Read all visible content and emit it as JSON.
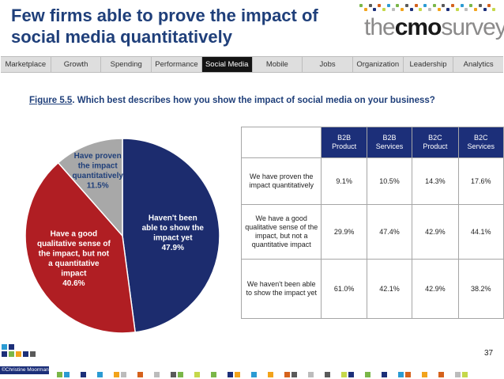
{
  "title": "Few firms able to prove the impact of social media quantitatively",
  "logo": {
    "pre": "the",
    "bold": "cmo",
    "post": "survey"
  },
  "nav": {
    "tabs": [
      "Marketplace",
      "Growth",
      "Spending",
      "Performance",
      "Social Media",
      "Mobile",
      "Jobs",
      "Organization",
      "Leadership",
      "Analytics"
    ],
    "active": "Social Media"
  },
  "figure": {
    "number": "Figure 5.5",
    "question": ". Which best describes how you show the impact of social media on your business?"
  },
  "chart_data": {
    "type": "pie",
    "title": "Which best describes how you show the impact of social media on your business?",
    "slices": [
      {
        "label": [
          "Haven't been",
          "able to show the",
          "impact yet"
        ],
        "value": 47.9,
        "value_label": "47.9%",
        "color": "#1c2c6e",
        "text_color": "#ffffff"
      },
      {
        "label": [
          "Have a good",
          "qualitative sense of",
          "the impact, but not",
          "a quantitative",
          "impact"
        ],
        "value": 40.6,
        "value_label": "40.6%",
        "color": "#b01e23",
        "text_color": "#ffffff"
      },
      {
        "label": [
          "Have proven",
          "the impact",
          "quantitatively"
        ],
        "value": 11.5,
        "value_label": "11.5%",
        "color": "#a8a8a8",
        "text_color": "#1f3f7a"
      }
    ]
  },
  "table": {
    "headers": [
      [
        "B2B",
        "Product"
      ],
      [
        "B2B",
        "Services"
      ],
      [
        "B2C",
        "Product"
      ],
      [
        "B2C",
        "Services"
      ]
    ],
    "rows": [
      {
        "label": "We have proven the impact quantitatively",
        "values": [
          "9.1%",
          "10.5%",
          "14.3%",
          "17.6%"
        ]
      },
      {
        "label": "We have a good qualitative sense of the impact, but not a quantitative impact",
        "values": [
          "29.9%",
          "47.4%",
          "42.9%",
          "44.1%"
        ]
      },
      {
        "label": "We haven't been able to show the impact yet",
        "values": [
          "61.0%",
          "42.1%",
          "42.9%",
          "38.2%"
        ]
      }
    ]
  },
  "footer": {
    "credit": "©Christine Moorman",
    "page_number": "37"
  },
  "colors": {
    "title": "#1f3f7a",
    "header_bg": "#1c2f79",
    "accent_palette": [
      "#7ab648",
      "#1c2f79",
      "#2b9bd3",
      "#f2a31b",
      "#d5621c",
      "#bcbcbc",
      "#5a5a5a",
      "#c5d84a"
    ]
  }
}
